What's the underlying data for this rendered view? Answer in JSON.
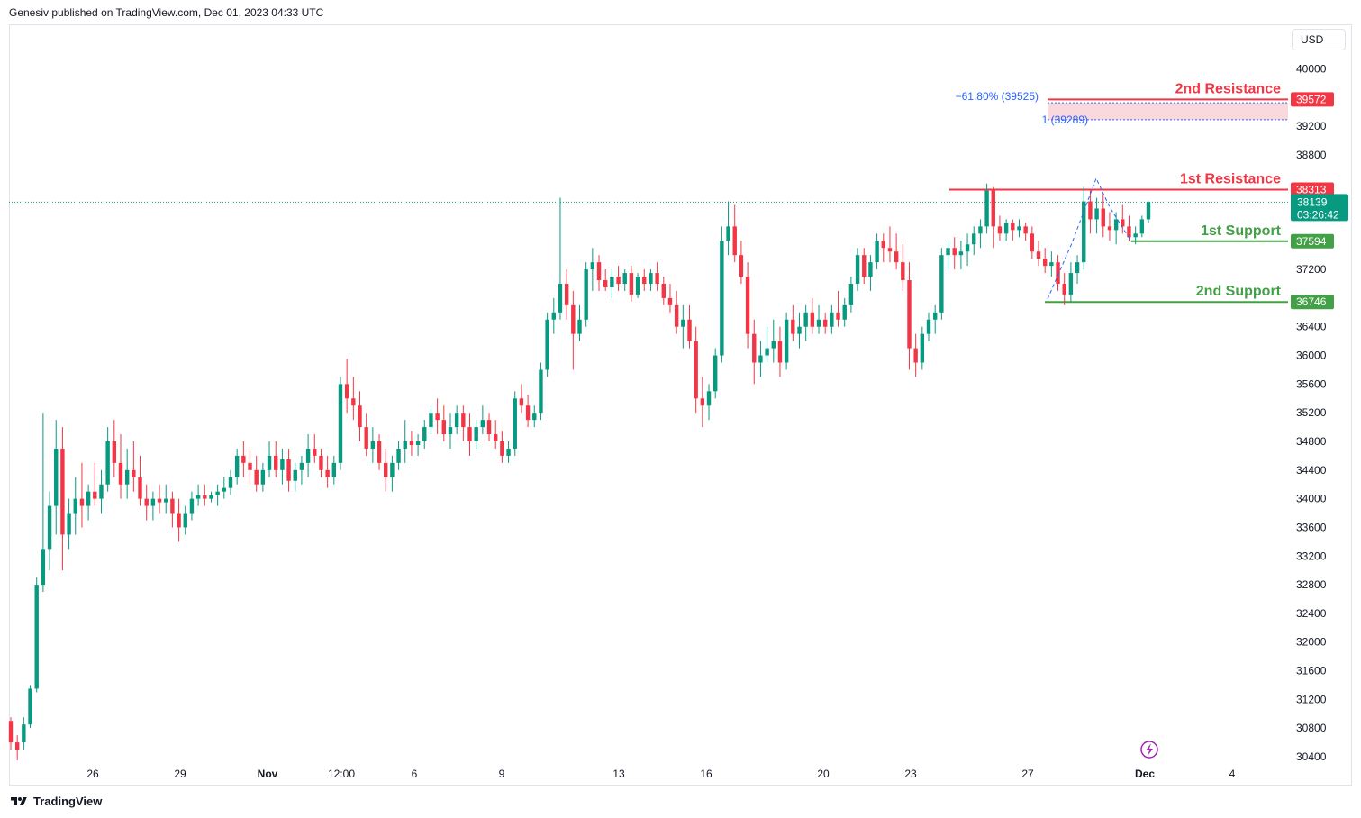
{
  "header": {
    "text": "Genesiv published on TradingView.com, Dec 01, 2023 04:33 UTC"
  },
  "currency": {
    "label": "USD"
  },
  "footer": {
    "logo_text": "TradingView"
  },
  "colors": {
    "up": "#089981",
    "down": "#f23645",
    "resistance": "#f23645",
    "support": "#43a047",
    "fib": "#2962ff"
  },
  "chart_data": {
    "type": "candlestick",
    "ylim": [
      30200,
      40400
    ],
    "y_ticks": [
      "40000",
      "39200",
      "38800",
      "37200",
      "36400",
      "36000",
      "35600",
      "35200",
      "34800",
      "34400",
      "34000",
      "33600",
      "33200",
      "32800",
      "32400",
      "32000",
      "31600",
      "31200",
      "30800",
      "30400"
    ],
    "x_ticks": [
      "26",
      "29",
      "Nov",
      "12:00",
      "6",
      "9",
      "13",
      "16",
      "20",
      "23",
      "27",
      "Dec",
      "4"
    ],
    "last_price": {
      "value": "38139",
      "countdown": "03:26:42"
    },
    "levels": [
      {
        "name": "2nd Resistance",
        "value": 39572,
        "badge": "39572",
        "kind": "resistance"
      },
      {
        "name": "1st Resistance",
        "value": 38313,
        "badge": "38313",
        "kind": "resistance"
      },
      {
        "name": "1st Support",
        "value": 37594,
        "badge": "37594",
        "kind": "support"
      },
      {
        "name": "2nd Support",
        "value": 36746,
        "badge": "36746",
        "kind": "support"
      }
    ],
    "fib_labels": {
      "upper": "−61.80% (39525)",
      "upper_value": 39525,
      "lower": "1 (39289)",
      "lower_value": 39289
    },
    "candles": [
      [
        30900,
        30950,
        30500,
        30600
      ],
      [
        30600,
        30700,
        30350,
        30500
      ],
      [
        30600,
        30950,
        30500,
        30850
      ],
      [
        30850,
        31400,
        30800,
        31350
      ],
      [
        31350,
        32900,
        31300,
        32800
      ],
      [
        32800,
        35200,
        32700,
        33300
      ],
      [
        33300,
        34100,
        33000,
        33900
      ],
      [
        33900,
        35100,
        33500,
        34700
      ],
      [
        34700,
        35000,
        33000,
        33500
      ],
      [
        33500,
        34000,
        33300,
        33800
      ],
      [
        33800,
        34300,
        33500,
        34000
      ],
      [
        34000,
        34500,
        33600,
        33900
      ],
      [
        33900,
        34200,
        33700,
        34100
      ],
      [
        34100,
        34500,
        33900,
        34000
      ],
      [
        34000,
        34400,
        33800,
        34200
      ],
      [
        34200,
        35000,
        34100,
        34800
      ],
      [
        34800,
        35100,
        34300,
        34500
      ],
      [
        34500,
        34900,
        34000,
        34200
      ],
      [
        34200,
        34700,
        34000,
        34400
      ],
      [
        34400,
        34800,
        34100,
        34300
      ],
      [
        34300,
        34600,
        33900,
        34000
      ],
      [
        34000,
        34200,
        33700,
        33900
      ],
      [
        33900,
        34100,
        33700,
        34000
      ],
      [
        34000,
        34200,
        33800,
        33950
      ],
      [
        33950,
        34200,
        33800,
        34000
      ],
      [
        34000,
        34100,
        33600,
        33800
      ],
      [
        33800,
        34000,
        33400,
        33600
      ],
      [
        33600,
        33900,
        33500,
        33800
      ],
      [
        33800,
        34100,
        33700,
        34000
      ],
      [
        34000,
        34200,
        33900,
        34050
      ],
      [
        34050,
        34200,
        33900,
        34000
      ],
      [
        34000,
        34100,
        33950,
        34050
      ],
      [
        34050,
        34200,
        33900,
        34100
      ],
      [
        34100,
        34300,
        34000,
        34150
      ],
      [
        34150,
        34400,
        34050,
        34300
      ],
      [
        34300,
        34700,
        34200,
        34600
      ],
      [
        34600,
        34800,
        34300,
        34500
      ],
      [
        34500,
        34700,
        34200,
        34400
      ],
      [
        34400,
        34600,
        34100,
        34200
      ],
      [
        34200,
        34500,
        34100,
        34400
      ],
      [
        34400,
        34800,
        34300,
        34600
      ],
      [
        34600,
        34800,
        34300,
        34400
      ],
      [
        34400,
        34700,
        34200,
        34550
      ],
      [
        34550,
        34700,
        34100,
        34250
      ],
      [
        34250,
        34500,
        34100,
        34400
      ],
      [
        34400,
        34600,
        34200,
        34500
      ],
      [
        34500,
        34900,
        34300,
        34700
      ],
      [
        34700,
        34900,
        34500,
        34600
      ],
      [
        34600,
        34700,
        34300,
        34400
      ],
      [
        34400,
        34600,
        34150,
        34300
      ],
      [
        34300,
        34600,
        34200,
        34500
      ],
      [
        34500,
        35700,
        34400,
        35600
      ],
      [
        35600,
        35950,
        35200,
        35400
      ],
      [
        35400,
        35700,
        35100,
        35300
      ],
      [
        35300,
        35500,
        34800,
        35000
      ],
      [
        35000,
        35200,
        34600,
        34700
      ],
      [
        34700,
        35000,
        34500,
        34800
      ],
      [
        34800,
        34900,
        34400,
        34500
      ],
      [
        34500,
        34700,
        34100,
        34300
      ],
      [
        34300,
        34600,
        34100,
        34500
      ],
      [
        34500,
        34800,
        34400,
        34700
      ],
      [
        34700,
        35100,
        34500,
        34800
      ],
      [
        34800,
        34950,
        34600,
        34750
      ],
      [
        34750,
        34900,
        34600,
        34800
      ],
      [
        34800,
        35100,
        34700,
        35000
      ],
      [
        35000,
        35300,
        34900,
        35200
      ],
      [
        35200,
        35400,
        34900,
        35100
      ],
      [
        35100,
        35300,
        34800,
        34900
      ],
      [
        34900,
        35200,
        34700,
        35000
      ],
      [
        35000,
        35300,
        34900,
        35200
      ],
      [
        35200,
        35300,
        34800,
        35000
      ],
      [
        35000,
        35200,
        34600,
        34800
      ],
      [
        34800,
        35100,
        34700,
        35000
      ],
      [
        35000,
        35300,
        34900,
        35100
      ],
      [
        35100,
        35200,
        34800,
        34900
      ],
      [
        34900,
        35100,
        34700,
        34800
      ],
      [
        34800,
        34950,
        34500,
        34600
      ],
      [
        34600,
        34800,
        34500,
        34700
      ],
      [
        34700,
        35500,
        34600,
        35400
      ],
      [
        35400,
        35600,
        35200,
        35300
      ],
      [
        35300,
        35450,
        35000,
        35100
      ],
      [
        35100,
        35300,
        35000,
        35200
      ],
      [
        35200,
        35900,
        35100,
        35800
      ],
      [
        35800,
        36600,
        35700,
        36500
      ],
      [
        36500,
        36800,
        36300,
        36600
      ],
      [
        36600,
        38200,
        36500,
        37000
      ],
      [
        37000,
        37200,
        36500,
        36700
      ],
      [
        36700,
        36900,
        35800,
        36300
      ],
      [
        36300,
        36700,
        36200,
        36500
      ],
      [
        36500,
        37300,
        36400,
        37200
      ],
      [
        37200,
        37500,
        36900,
        37300
      ],
      [
        37300,
        37400,
        36900,
        37050
      ],
      [
        37050,
        37200,
        36900,
        36950
      ],
      [
        36950,
        37200,
        36800,
        37100
      ],
      [
        37100,
        37250,
        36900,
        37000
      ],
      [
        37000,
        37200,
        36900,
        37150
      ],
      [
        37150,
        37250,
        36750,
        36850
      ],
      [
        36850,
        37150,
        36800,
        37100
      ],
      [
        37100,
        37200,
        36900,
        37000
      ],
      [
        37000,
        37200,
        36900,
        37150
      ],
      [
        37150,
        37300,
        36900,
        37000
      ],
      [
        37000,
        37100,
        36700,
        36800
      ],
      [
        36800,
        37000,
        36600,
        36700
      ],
      [
        36700,
        36900,
        36300,
        36400
      ],
      [
        36400,
        36700,
        36100,
        36500
      ],
      [
        36500,
        36700,
        36100,
        36200
      ],
      [
        36200,
        36400,
        35200,
        35400
      ],
      [
        35400,
        35700,
        35000,
        35300
      ],
      [
        35300,
        35600,
        35100,
        35500
      ],
      [
        35500,
        36100,
        35400,
        36000
      ],
      [
        36000,
        37800,
        35900,
        37600
      ],
      [
        37600,
        38150,
        37400,
        37800
      ],
      [
        37800,
        38100,
        37300,
        37400
      ],
      [
        37400,
        37600,
        37000,
        37100
      ],
      [
        37100,
        37300,
        36100,
        36300
      ],
      [
        36300,
        36500,
        35600,
        35900
      ],
      [
        35900,
        36200,
        35700,
        36000
      ],
      [
        36000,
        36400,
        35900,
        36100
      ],
      [
        36100,
        36500,
        35900,
        36200
      ],
      [
        36200,
        36400,
        35700,
        35900
      ],
      [
        35900,
        36600,
        35800,
        36500
      ],
      [
        36500,
        36700,
        36200,
        36300
      ],
      [
        36300,
        36600,
        36100,
        36400
      ],
      [
        36400,
        36700,
        36200,
        36600
      ],
      [
        36600,
        36800,
        36300,
        36400
      ],
      [
        36400,
        36700,
        36300,
        36500
      ],
      [
        36500,
        36600,
        36300,
        36400
      ],
      [
        36400,
        36700,
        36300,
        36600
      ],
      [
        36600,
        36900,
        36400,
        36500
      ],
      [
        36500,
        36800,
        36400,
        36700
      ],
      [
        36700,
        37100,
        36600,
        37000
      ],
      [
        37000,
        37500,
        36900,
        37400
      ],
      [
        37400,
        37500,
        37000,
        37100
      ],
      [
        37100,
        37400,
        36900,
        37300
      ],
      [
        37300,
        37700,
        37200,
        37600
      ],
      [
        37600,
        37700,
        37300,
        37500
      ],
      [
        37500,
        37800,
        37300,
        37450
      ],
      [
        37450,
        37700,
        37200,
        37300
      ],
      [
        37300,
        37550,
        36900,
        37050
      ],
      [
        37050,
        37300,
        35800,
        36100
      ],
      [
        36100,
        36300,
        35700,
        35900
      ],
      [
        35900,
        36400,
        35800,
        36300
      ],
      [
        36300,
        36600,
        36200,
        36500
      ],
      [
        36500,
        36700,
        36300,
        36600
      ],
      [
        36600,
        37500,
        36500,
        37400
      ],
      [
        37400,
        37600,
        37200,
        37500
      ],
      [
        37500,
        37650,
        37200,
        37400
      ],
      [
        37400,
        37600,
        37200,
        37450
      ],
      [
        37450,
        37700,
        37250,
        37550
      ],
      [
        37550,
        37800,
        37400,
        37700
      ],
      [
        37700,
        37900,
        37500,
        37800
      ],
      [
        37800,
        38400,
        37700,
        38300
      ],
      [
        38300,
        38350,
        37500,
        37800
      ],
      [
        37800,
        37950,
        37600,
        37700
      ],
      [
        37700,
        37900,
        37600,
        37850
      ],
      [
        37850,
        37900,
        37600,
        37750
      ],
      [
        37750,
        37900,
        37650,
        37800
      ],
      [
        37800,
        37850,
        37600,
        37700
      ],
      [
        37700,
        37800,
        37350,
        37450
      ],
      [
        37450,
        37600,
        37250,
        37350
      ],
      [
        37350,
        37500,
        37150,
        37250
      ],
      [
        37250,
        37450,
        37100,
        37300
      ],
      [
        37300,
        37400,
        36900,
        37000
      ],
      [
        37000,
        37150,
        36700,
        36850
      ],
      [
        36850,
        37300,
        36750,
        37150
      ],
      [
        37150,
        37400,
        37000,
        37300
      ],
      [
        37300,
        38350,
        37200,
        38150
      ],
      [
        38150,
        38300,
        37700,
        37900
      ],
      [
        37900,
        38200,
        37700,
        38050
      ],
      [
        38050,
        38250,
        37650,
        37800
      ],
      [
        37800,
        38000,
        37600,
        37750
      ],
      [
        37750,
        38000,
        37550,
        37900
      ],
      [
        37900,
        38100,
        37700,
        37800
      ],
      [
        37800,
        37950,
        37600,
        37650
      ],
      [
        37650,
        37800,
        37550,
        37700
      ],
      [
        37700,
        37950,
        37650,
        37900
      ],
      [
        37900,
        38150,
        37850,
        38139
      ]
    ]
  }
}
